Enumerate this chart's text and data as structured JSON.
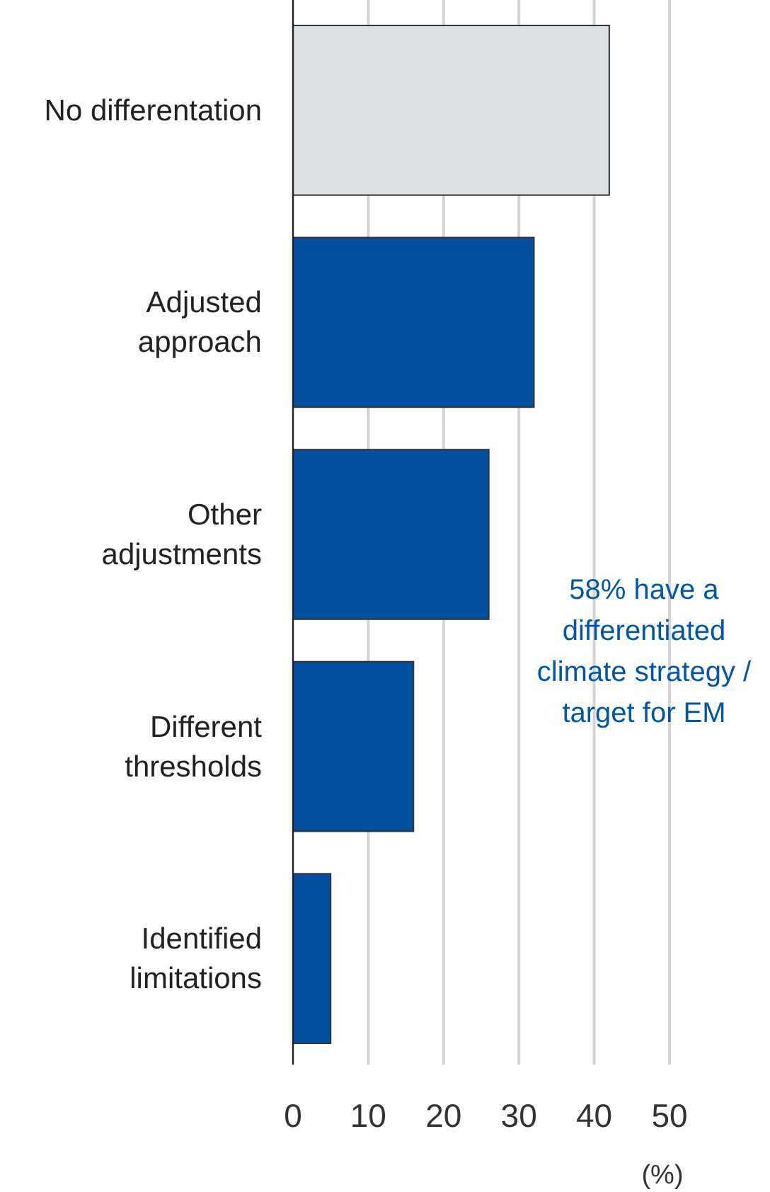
{
  "chart_data": {
    "type": "bar",
    "orientation": "horizontal",
    "categories": [
      "No differentation",
      "Adjusted\napproach",
      "Other\nadjustments",
      "Different\nthresholds",
      "Identified\nlimitations"
    ],
    "values": [
      42,
      32,
      26,
      16,
      5
    ],
    "colors": [
      "#dcdfe3",
      "#0050a0",
      "#0050a0",
      "#0050a0",
      "#0050a0"
    ],
    "xlim": [
      0,
      50
    ],
    "xticks": [
      0,
      10,
      20,
      30,
      40,
      50
    ],
    "grid": "x",
    "xlabel": "(%)",
    "annotations": [
      "58% have a\ndifferentiated\nclimate strategy /\ntarget for EM"
    ]
  }
}
